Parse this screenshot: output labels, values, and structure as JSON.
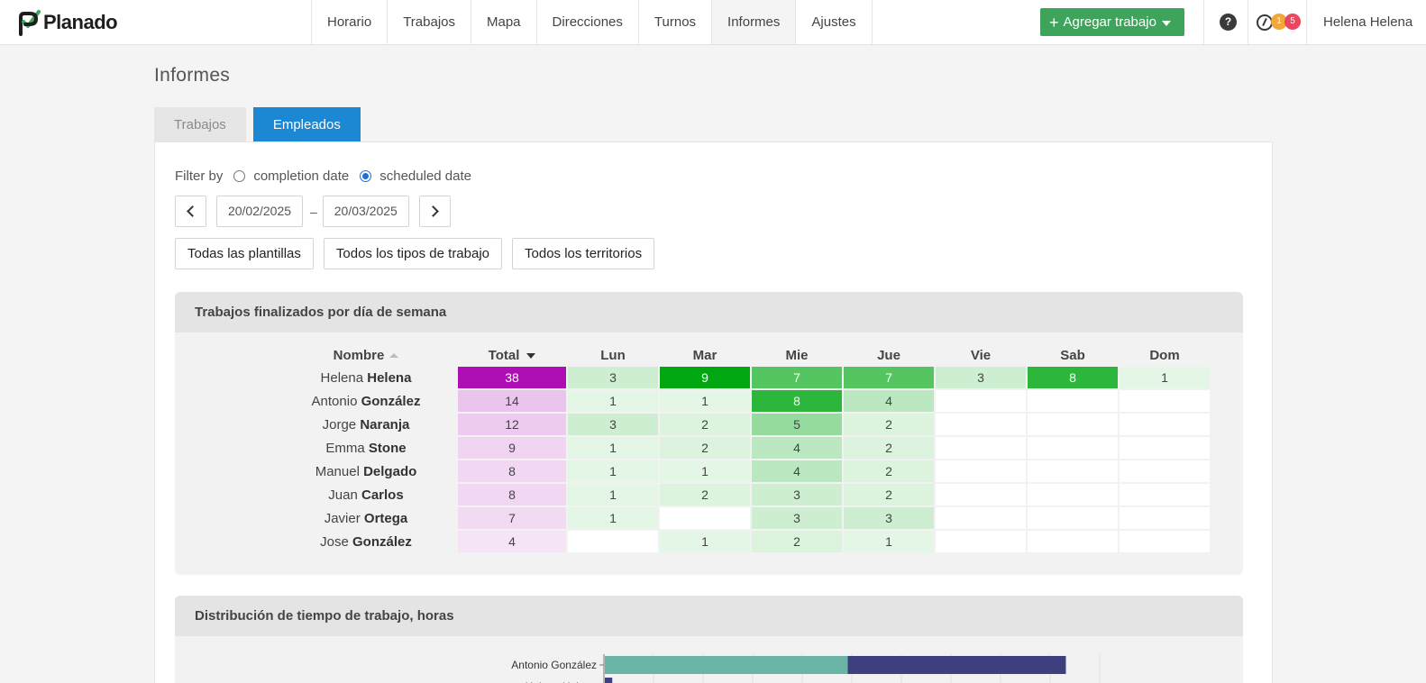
{
  "app": {
    "name": "Planado"
  },
  "nav": [
    "Horario",
    "Trabajos",
    "Mapa",
    "Direcciones",
    "Turnos",
    "Informes",
    "Ajustes"
  ],
  "nav_active": "Informes",
  "header": {
    "add_button": "Agregar trabajo",
    "help": "?",
    "badge_orange": "1",
    "badge_red": "5",
    "user": "Helena Helena"
  },
  "page": {
    "title": "Informes",
    "tabs": [
      "Trabajos",
      "Empleados"
    ],
    "active_tab": "Empleados"
  },
  "filter": {
    "label": "Filter by",
    "options": [
      "completion date",
      "scheduled date"
    ],
    "selected": "scheduled date"
  },
  "date_range": {
    "from": "20/02/2025",
    "separator": "–",
    "to": "20/03/2025"
  },
  "selects": [
    "Todas las plantillas",
    "Todos los tipos de trabajo",
    "Todos los territorios"
  ],
  "heatmap": {
    "title": "Trabajos finalizados por día de semana",
    "columns": [
      "Nombre",
      "Total",
      "Lun",
      "Mar",
      "Mie",
      "Jue",
      "Vie",
      "Sab",
      "Dom"
    ],
    "rows": [
      {
        "first": "Helena",
        "last": "Helena",
        "total": 38,
        "days": [
          3,
          9,
          7,
          7,
          3,
          8,
          1
        ]
      },
      {
        "first": "Antonio",
        "last": "González",
        "total": 14,
        "days": [
          1,
          1,
          8,
          4,
          null,
          null,
          null
        ]
      },
      {
        "first": "Jorge",
        "last": "Naranja",
        "total": 12,
        "days": [
          3,
          2,
          5,
          2,
          null,
          null,
          null
        ]
      },
      {
        "first": "Emma",
        "last": "Stone",
        "total": 9,
        "days": [
          1,
          2,
          4,
          2,
          null,
          null,
          null
        ]
      },
      {
        "first": "Manuel",
        "last": "Delgado",
        "total": 8,
        "days": [
          1,
          1,
          4,
          2,
          null,
          null,
          null
        ]
      },
      {
        "first": "Juan",
        "last": "Carlos",
        "total": 8,
        "days": [
          1,
          2,
          3,
          2,
          null,
          null,
          null
        ]
      },
      {
        "first": "Javier",
        "last": "Ortega",
        "total": 7,
        "days": [
          1,
          null,
          3,
          3,
          null,
          null,
          null
        ]
      },
      {
        "first": "Jose",
        "last": "González",
        "total": 4,
        "days": [
          null,
          1,
          2,
          1,
          null,
          null,
          null
        ]
      }
    ],
    "total_color": "#ad0fb4",
    "day_color": "#0aab1c"
  },
  "distribution": {
    "title": "Distribución de tiempo de trabajo, horas",
    "first_label": "Antonio González"
  },
  "chart_data": {
    "type": "bar",
    "title": "Distribución de tiempo de trabajo, horas",
    "categories": [
      "Antonio González",
      "Helena Helena"
    ],
    "series": [
      {
        "name": "segment-1",
        "color": "#6ab5a5",
        "values": [
          49,
          0
        ]
      },
      {
        "name": "segment-2",
        "color": "#3d3f7f",
        "values": [
          44,
          1.5
        ]
      }
    ],
    "xlim": [
      0,
      100
    ]
  }
}
